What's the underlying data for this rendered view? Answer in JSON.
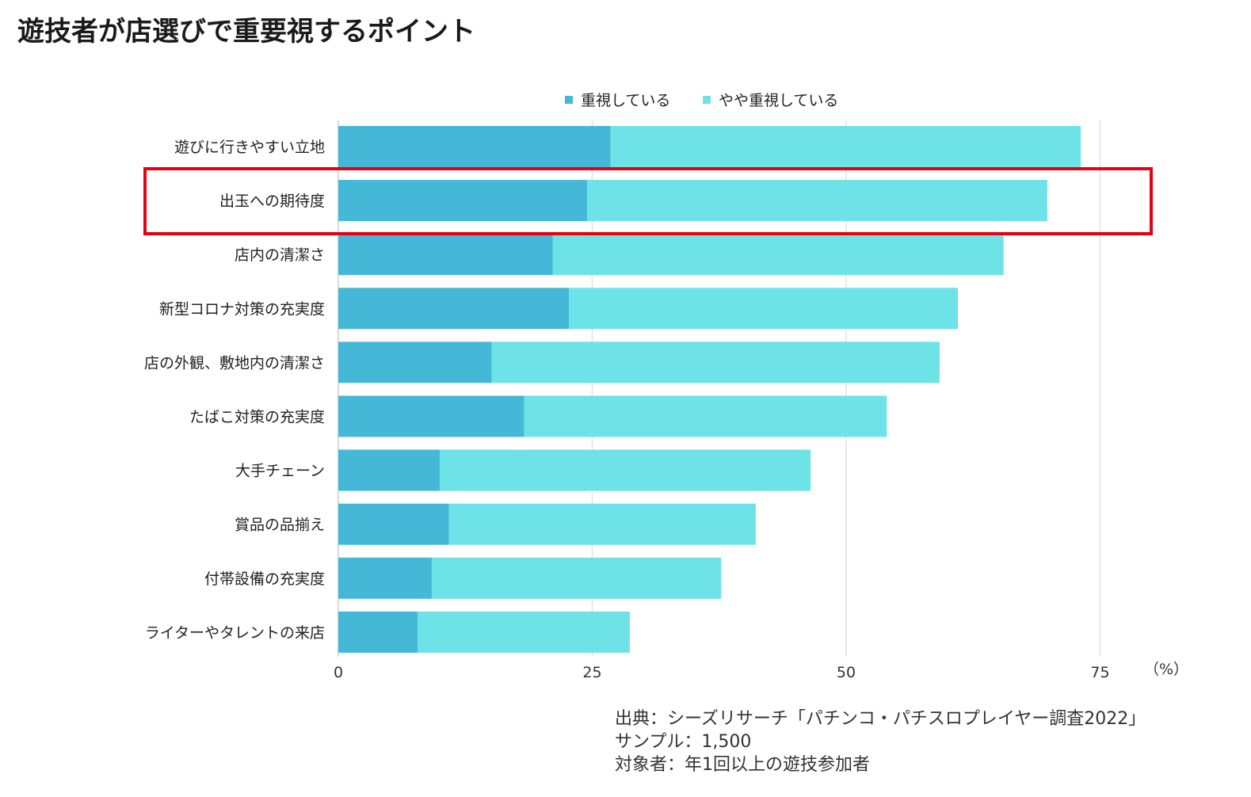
{
  "title": "遊技者が店選びで重要視するポイント",
  "chart_data": {
    "type": "bar",
    "orientation": "horizontal",
    "stacked": true,
    "categories": [
      "遊びに行きやすい立地",
      "出玉への期待度",
      "店内の清潔さ",
      "新型コロナ対策の充実度",
      "店の外観、敷地内の清潔さ",
      "たばこ対策の充実度",
      "大手チェーン",
      "賞品の品揃え",
      "付帯設備の充実度",
      "ライターやタレントの来店"
    ],
    "series": [
      {
        "name": "重視している",
        "color": "#44b8d6",
        "values": [
          26.8,
          24.5,
          21.1,
          22.7,
          15.1,
          18.3,
          10.0,
          10.9,
          9.2,
          7.8
        ]
      },
      {
        "name": "やや重視している",
        "color": "#6de3e8",
        "values": [
          46.3,
          45.3,
          44.4,
          38.3,
          44.1,
          35.7,
          36.5,
          30.2,
          28.5,
          20.9
        ]
      }
    ],
    "xlim": [
      0,
      75
    ],
    "xticks": [
      "0",
      "25",
      "50",
      "75"
    ],
    "unit": "（%）",
    "legend_position": "top",
    "grid": true,
    "highlighted_category": "出玉への期待度",
    "highlight_color": "#e60012"
  },
  "source": {
    "line1": "出典：シーズリサーチ「パチンコ・パチスロプレイヤー調査2022」",
    "line2": "サンプル：1,500",
    "line3": "対象者：年1回以上の遊技参加者"
  }
}
